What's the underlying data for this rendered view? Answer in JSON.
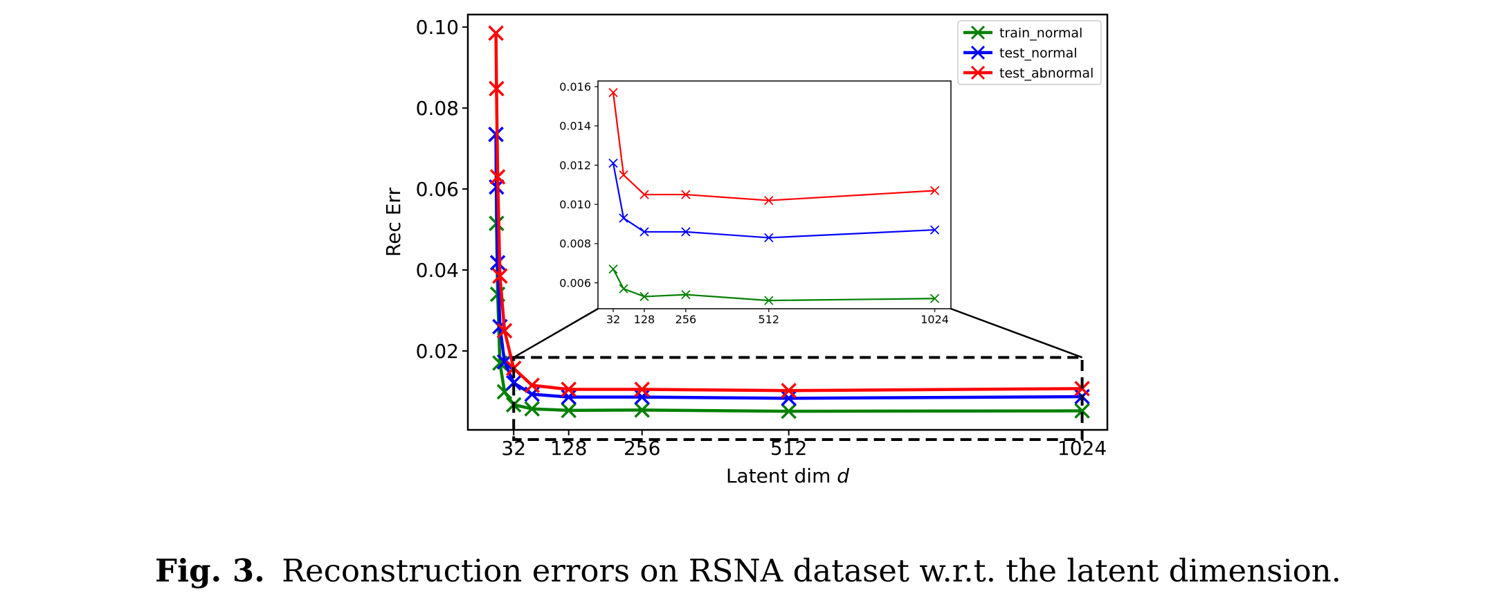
{
  "caption": {
    "label": "Fig. 3.",
    "text": "Reconstruction errors on RSNA dataset w.r.t. the latent dimension."
  },
  "chart_data": [
    {
      "type": "line",
      "xlabel": "Latent dim",
      "xlabel_var": "d",
      "ylabel": "Rec Err",
      "x": [
        1,
        2,
        4,
        8,
        16,
        32,
        64,
        128,
        256,
        512,
        1024
      ],
      "xlim": [
        -48,
        1068
      ],
      "ylim": [
        0.0005,
        0.1031
      ],
      "xticks": [
        32,
        128,
        256,
        512,
        1024
      ],
      "yticks": [
        0.02,
        0.04,
        0.06,
        0.08,
        0.1
      ],
      "ytick_labels": [
        "0.02",
        "0.04",
        "0.06",
        "0.08",
        "0.10"
      ],
      "grid": false,
      "legend_position": "top-right",
      "marker": "x",
      "series": [
        {
          "name": "train_normal",
          "color": "#008000",
          "values": [
            0.0735,
            0.0515,
            0.034,
            0.017,
            0.0099,
            0.0067,
            0.0057,
            0.0053,
            0.0054,
            0.0051,
            0.0052
          ]
        },
        {
          "name": "test_normal",
          "color": "#0000ff",
          "values": [
            0.0735,
            0.0605,
            0.0418,
            0.026,
            0.0173,
            0.0121,
            0.0093,
            0.0086,
            0.0086,
            0.0083,
            0.0087
          ]
        },
        {
          "name": "test_abnormal",
          "color": "#ff0000",
          "values": [
            0.0985,
            0.0848,
            0.063,
            0.0385,
            0.025,
            0.0157,
            0.0115,
            0.0105,
            0.0105,
            0.0102,
            0.0107
          ]
        }
      ],
      "zoom_region": {
        "x": [
          32,
          1024
        ],
        "y": [
          -0.0019,
          0.0184
        ]
      }
    },
    {
      "type": "line",
      "role": "inset",
      "x": [
        32,
        64,
        128,
        256,
        512,
        1024
      ],
      "xlim": [
        -15,
        1074
      ],
      "ylim": [
        0.00468,
        0.01629
      ],
      "xticks": [
        32,
        128,
        256,
        512,
        1024
      ],
      "yticks": [
        0.006,
        0.008,
        0.01,
        0.012,
        0.014,
        0.016
      ],
      "ytick_labels": [
        "0.006",
        "0.008",
        "0.010",
        "0.012",
        "0.014",
        "0.016"
      ],
      "grid": false,
      "marker": "x",
      "series": [
        {
          "color": "#008000",
          "values": [
            0.0067,
            0.0057,
            0.0053,
            0.0054,
            0.0051,
            0.0052
          ]
        },
        {
          "color": "#0000ff",
          "values": [
            0.0121,
            0.0093,
            0.0086,
            0.0086,
            0.0083,
            0.0087
          ]
        },
        {
          "color": "#ff0000",
          "values": [
            0.0157,
            0.0115,
            0.0105,
            0.0105,
            0.0102,
            0.0107
          ]
        }
      ]
    }
  ]
}
